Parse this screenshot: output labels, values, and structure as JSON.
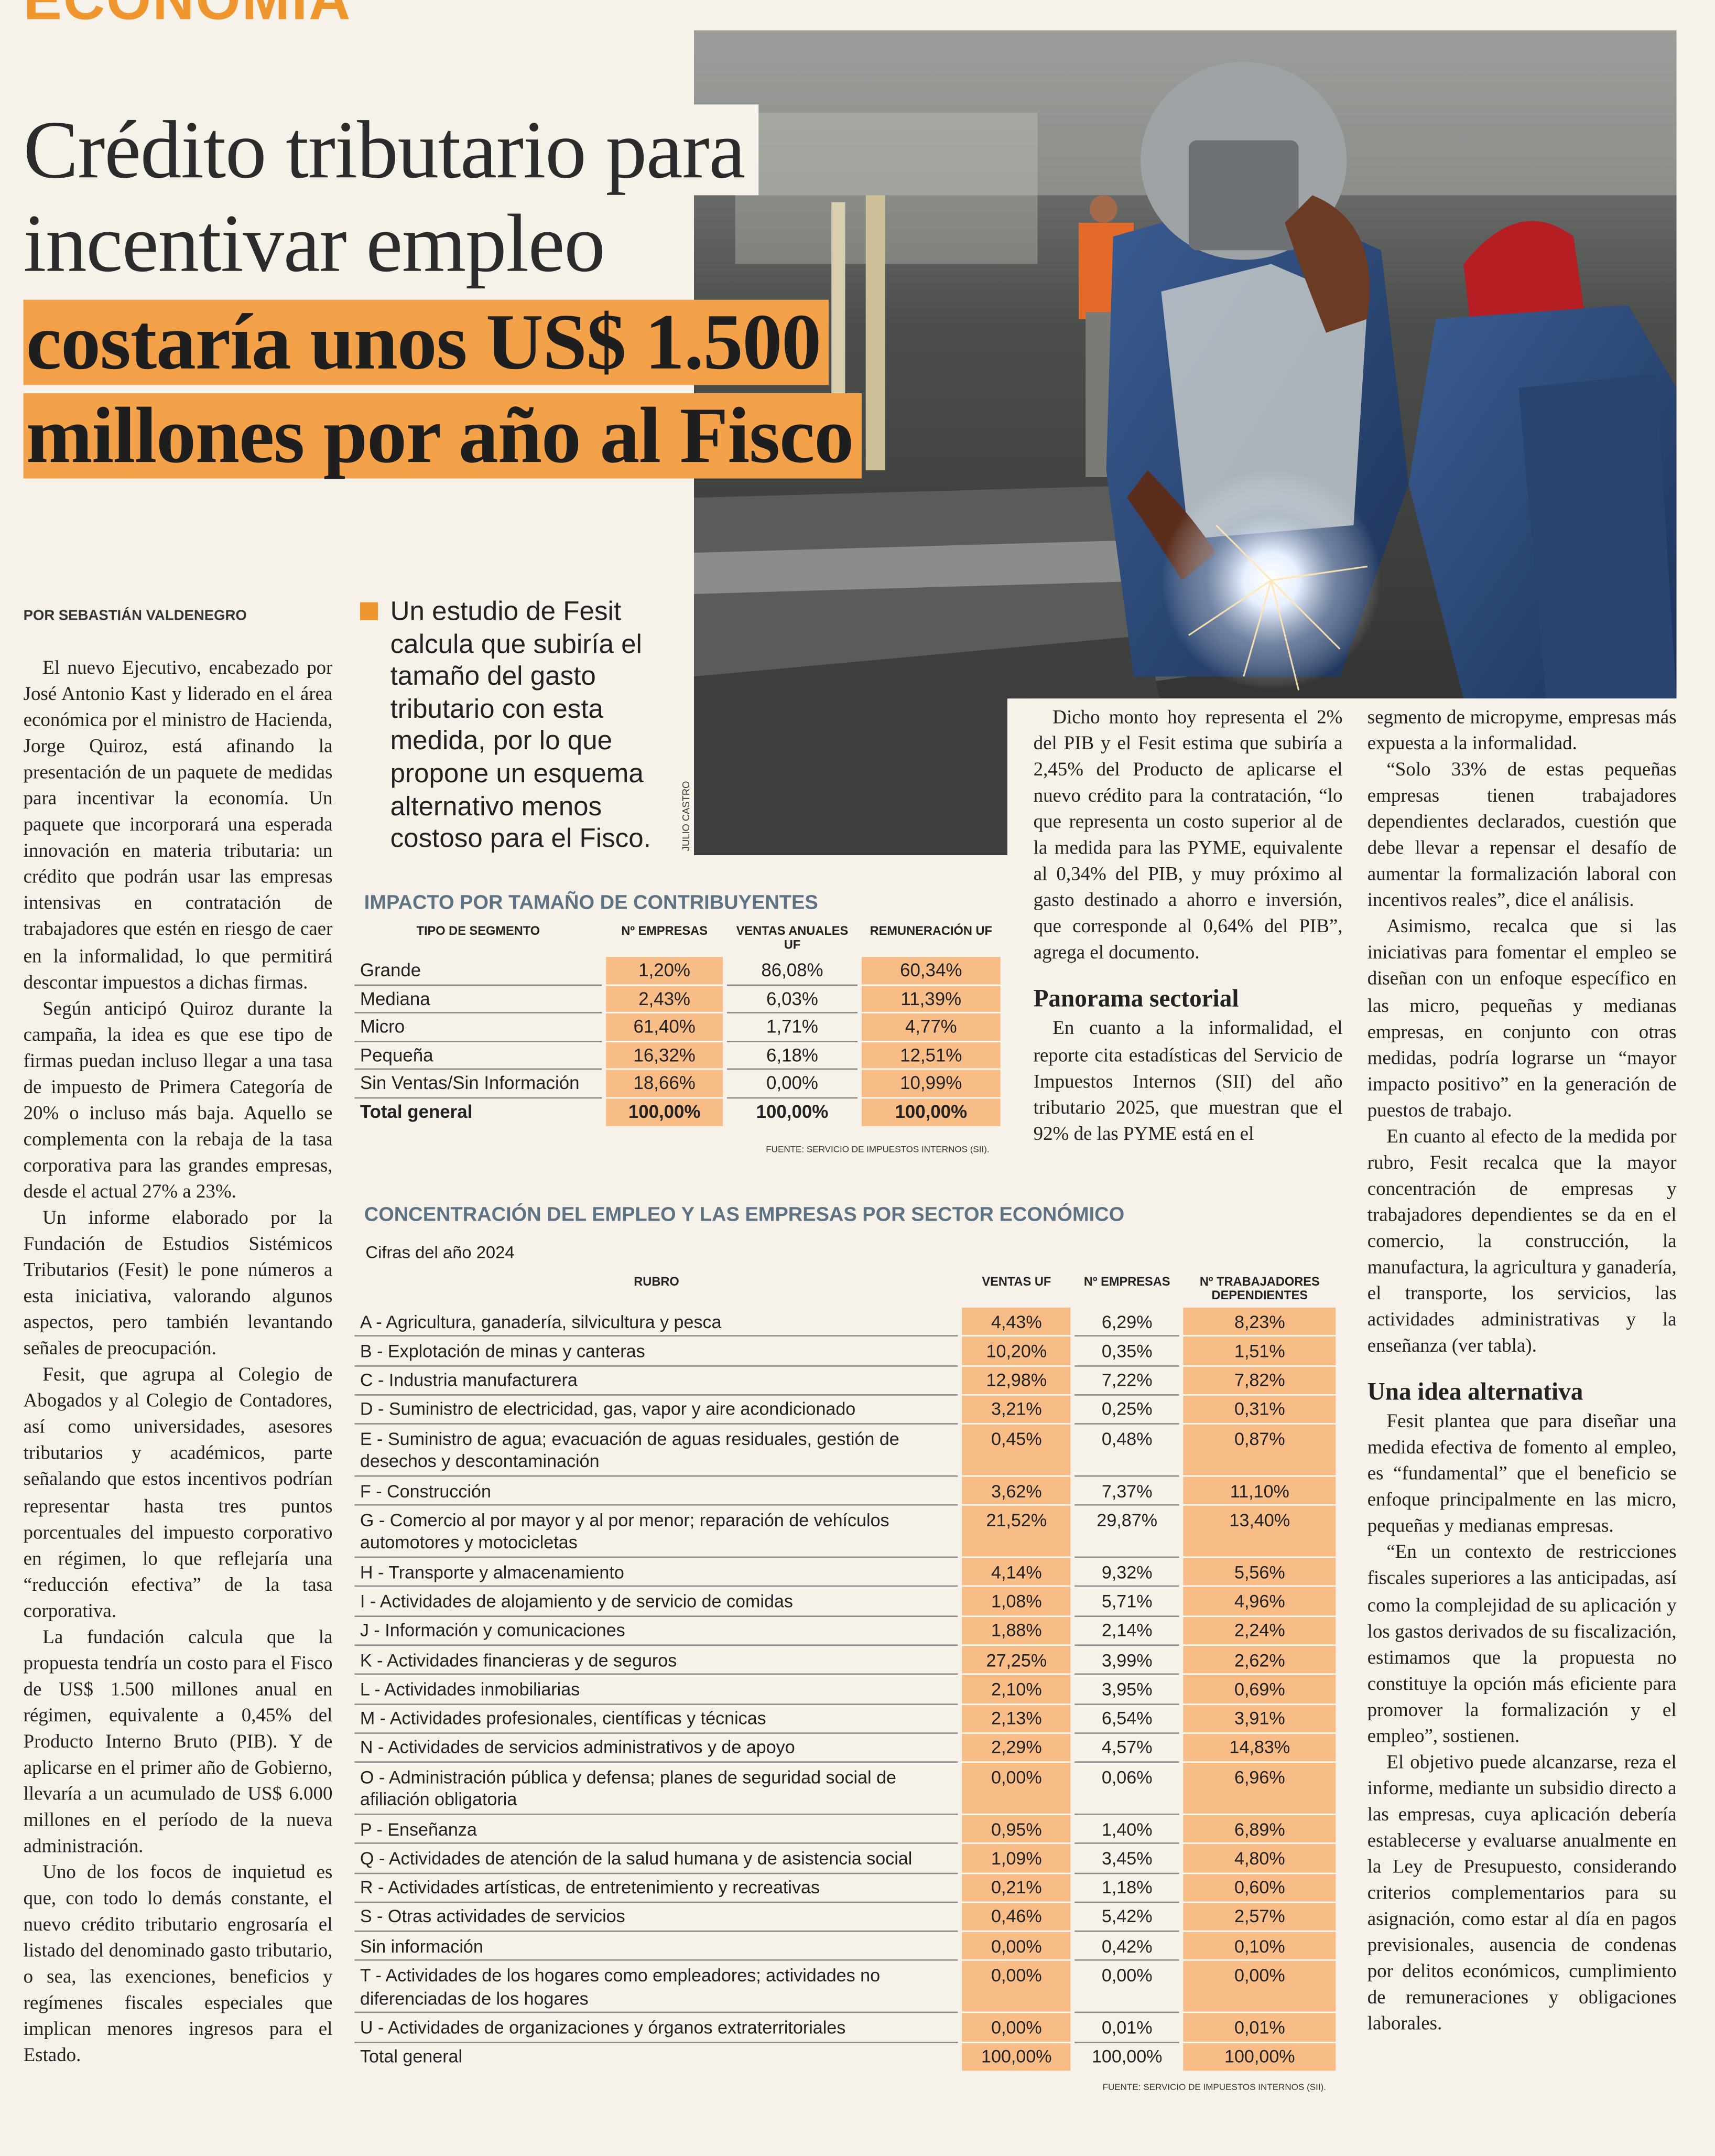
{
  "section": "ECONOMÍA",
  "headline": {
    "lines": [
      "Crédito tributario para",
      "incentivar empleo"
    ],
    "highlight": [
      "costaría unos US$ 1.500",
      "millones por año al Fisco"
    ]
  },
  "byline": "POR SEBASTIÁN VALDENEGRO",
  "lead": "Un estudio de Fesit calcula que subiría el tamaño del gasto tributario con esta medida, por lo que propone un esquema alternativo menos costoso para el Fisco.",
  "photo_credit": "JULIO CASTRO",
  "columns": [
    [
      {
        "paragraph": "El nuevo Ejecutivo, encabezado por José Antonio Kast y liderado en el área económica por el ministro de Hacienda, Jorge Quiroz, está afinando la presentación de un paquete de medidas para incentivar la economía. Un paquete que incorporará una esperada innovación en materia tributaria: un crédito que podrán usar las empresas intensivas en contratación de trabajadores que estén en riesgo de caer en la informalidad, lo que permitirá descontar impuestos a dichas firmas."
      },
      {
        "paragraph": "Según anticipó Quiroz durante la campaña, la idea es que ese tipo de firmas puedan incluso llegar a una tasa de impuesto de Primera Categoría de 20% o incluso más baja. Aquello se complementa con la rebaja de la tasa corporativa para las grandes empresas, desde el actual 27% a 23%."
      },
      {
        "paragraph": "Un informe elaborado por la Fundación de Estudios Sistémicos Tributarios (Fesit) le pone números a esta iniciativa, valorando algunos aspectos, pero también levantando señales de preocupación."
      },
      {
        "paragraph": "Fesit, que agrupa al Colegio de Abogados y al Colegio de Contadores, así como universidades, asesores tributarios y académicos, parte señalando que estos incentivos podrían representar hasta tres puntos porcentuales del impuesto corporativo en régimen, lo que reflejaría una “reducción efectiva” de la tasa corporativa."
      },
      {
        "paragraph": "La fundación calcula que la propuesta tendría un costo para el Fisco de US$ 1.500 millones anual en régimen, equivalente a 0,45% del Producto Interno Bruto (PIB). Y de aplicarse en el primer año de Gobierno, llevaría a un acumulado de US$ 6.000 millones en el período de la nueva administración."
      },
      {
        "paragraph": "Uno de los focos de inquietud es que, con todo lo demás constante, el nuevo crédito tributario engrosaría el listado del denominado gasto tributario, o sea, las exenciones, beneficios y regímenes fiscales especiales que implican menores ingresos para el Estado."
      }
    ],
    [
      {
        "paragraph": "Dicho monto hoy representa el 2% del PIB y el Fesit estima que subiría a 2,45% del Producto de aplicarse el nuevo crédito para la contratación, “lo que representa un costo superior al de la medida para las PYME, equivalente al 0,34% del PIB, y muy próximo al gasto destinado a ahorro e inversión, que corresponde al 0,64% del PIB”, agrega el documento."
      },
      {
        "subhead": "Panorama sectorial"
      },
      {
        "paragraph": "En cuanto a la informalidad, el reporte cita estadísticas del Servicio de Impuestos Internos (SII) del año tributario 2025, que muestran que el 92% de las PYME está en el"
      }
    ],
    [
      {
        "paragraph": "segmento de micropyme, empresas más expuesta a la informalidad."
      },
      {
        "paragraph": "“Solo 33% de estas pequeñas empresas tienen trabajadores dependientes declarados, cuestión que debe llevar a repensar el desafío de aumentar la formalización laboral con incentivos reales”, dice el análisis."
      },
      {
        "paragraph": "Asimismo, recalca que si las iniciativas para fomentar el empleo se diseñan con un enfoque específico en las micro, pequeñas y medianas empresas, en conjunto con otras medidas, podría lograrse un “mayor impacto positivo” en la generación de puestos de trabajo."
      },
      {
        "paragraph": "En cuanto al efecto de la medida por rubro, Fesit recalca que la mayor concentración de empresas y trabajadores dependientes se da en el comercio, la construcción, la manufactura, la agricultura y ganadería, el transporte, los servicios, las actividades administrativas y la enseñanza (ver tabla)."
      },
      {
        "subhead": "Una idea alternativa"
      },
      {
        "paragraph": "Fesit plantea que para diseñar una medida efectiva de fomento al empleo, es “fundamental” que el beneficio se enfoque principalmente en las micro, pequeñas y medianas empresas."
      },
      {
        "paragraph": "“En un contexto de restricciones fiscales superiores a las anticipadas, así como la complejidad de su aplicación y los gastos derivados de su fiscalización, estimamos que la propuesta no constituye la opción más eficiente para promover la formalización y el empleo”, sostienen."
      },
      {
        "paragraph": "El objetivo puede alcanzarse, reza el informe, mediante un subsidio directo a las empresas, cuya aplicación debería establecerse y evaluarse anualmente en la Ley de Presupuesto, considerando criterios complementarios para su asignación, como estar al día en pagos previsionales, ausencia de condenas por delitos económicos, cumplimiento de remuneraciones y obligaciones laborales."
      }
    ]
  ],
  "tables": [
    {
      "title": "IMPACTO POR TAMAÑO DE CONTRIBUYENTES",
      "headers": [
        "TIPO DE SEGMENTO",
        "Nº EMPRESAS",
        "VENTAS ANUALES UF",
        "REMUNERACIÓN UF"
      ],
      "rows": [
        [
          "Grande",
          "1,20%",
          "86,08%",
          "60,34%"
        ],
        [
          "Mediana",
          "2,43%",
          "6,03%",
          "11,39%"
        ],
        [
          "Micro",
          "61,40%",
          "1,71%",
          "4,77%"
        ],
        [
          "Pequeña",
          "16,32%",
          "6,18%",
          "12,51%"
        ],
        [
          "Sin Ventas/Sin Información",
          "18,66%",
          "0,00%",
          "10,99%"
        ],
        [
          "Total general",
          "100,00%",
          "100,00%",
          "100,00%"
        ]
      ],
      "source": "FUENTE: SERVICIO DE IMPUESTOS INTERNOS (SII)."
    },
    {
      "title": "CONCENTRACIÓN DEL EMPLEO Y LAS EMPRESAS POR SECTOR ECONÓMICO",
      "subtitle": "Cifras del año 2024",
      "headers": [
        "RUBRO",
        "VENTAS UF",
        "Nº EMPRESAS",
        "Nº TRABAJADORES DEPENDIENTES"
      ],
      "rows": [
        [
          "A - Agricultura, ganadería, silvicultura y pesca",
          "4,43%",
          "6,29%",
          "8,23%"
        ],
        [
          "B - Explotación de minas y canteras",
          "10,20%",
          "0,35%",
          "1,51%"
        ],
        [
          "C - Industria manufacturera",
          "12,98%",
          "7,22%",
          "7,82%"
        ],
        [
          "D - Suministro de electricidad, gas, vapor y aire acondicionado",
          "3,21%",
          "0,25%",
          "0,31%"
        ],
        [
          "E - Suministro de agua; evacuación de aguas residuales, gestión de desechos y descontaminación",
          "0,45%",
          "0,48%",
          "0,87%"
        ],
        [
          "F - Construcción",
          "3,62%",
          "7,37%",
          "11,10%"
        ],
        [
          "G - Comercio al por mayor y al por menor; reparación de vehículos automotores y motocicletas",
          "21,52%",
          "29,87%",
          "13,40%"
        ],
        [
          "H - Transporte y almacenamiento",
          "4,14%",
          "9,32%",
          "5,56%"
        ],
        [
          "I - Actividades de alojamiento y de servicio de comidas",
          "1,08%",
          "5,71%",
          "4,96%"
        ],
        [
          "J - Información y comunicaciones",
          "1,88%",
          "2,14%",
          "2,24%"
        ],
        [
          "K - Actividades financieras y de seguros",
          "27,25%",
          "3,99%",
          "2,62%"
        ],
        [
          "L - Actividades inmobiliarias",
          "2,10%",
          "3,95%",
          "0,69%"
        ],
        [
          "M - Actividades profesionales, científicas y técnicas",
          "2,13%",
          "6,54%",
          "3,91%"
        ],
        [
          "N - Actividades de servicios administrativos y de apoyo",
          "2,29%",
          "4,57%",
          "14,83%"
        ],
        [
          "O - Administración pública y defensa; planes de seguridad social de afiliación obligatoria",
          "0,00%",
          "0,06%",
          "6,96%"
        ],
        [
          "P - Enseñanza",
          "0,95%",
          "1,40%",
          "6,89%"
        ],
        [
          "Q - Actividades de atención de la salud humana y de asistencia social",
          "1,09%",
          "3,45%",
          "4,80%"
        ],
        [
          "R - Actividades artísticas, de entretenimiento y recreativas",
          "0,21%",
          "1,18%",
          "0,60%"
        ],
        [
          "S - Otras actividades de servicios",
          "0,46%",
          "5,42%",
          "2,57%"
        ],
        [
          "Sin información",
          "0,00%",
          "0,42%",
          "0,10%"
        ],
        [
          "T - Actividades de los hogares como empleadores; actividades no diferenciadas de los hogares",
          "0,00%",
          "0,00%",
          "0,00%"
        ],
        [
          "U - Actividades de organizaciones y órganos extraterritoriales",
          "0,00%",
          "0,01%",
          "0,01%"
        ],
        [
          "Total general",
          "100,00%",
          "100,00%",
          "100,00%"
        ]
      ],
      "source": "FUENTE: SERVICIO DE IMPUESTOS INTERNOS (SII)."
    }
  ]
}
